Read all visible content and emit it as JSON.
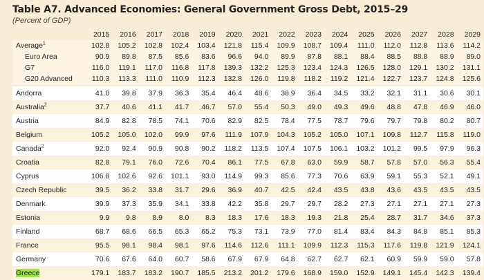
{
  "title": "Table A7. Advanced Economies: General Government Gross Debt, 2015–29",
  "subtitle": "(Percent of GDP)",
  "columns": [
    "2015",
    "2016",
    "2017",
    "2018",
    "2019",
    "2020",
    "2021",
    "2022",
    "2023",
    "2024",
    "2025",
    "2026",
    "2027",
    "2028",
    "2029"
  ],
  "groups": [
    {
      "label": "Average",
      "sup": "1",
      "indent": false,
      "values": [
        "102.8",
        "105.2",
        "102.8",
        "102.4",
        "103.4",
        "121.8",
        "115.4",
        "109.9",
        "108.7",
        "109.4",
        "111.0",
        "112.0",
        "112.8",
        "113.6",
        "114.2"
      ]
    },
    {
      "label": "Euro Area",
      "sup": "",
      "indent": true,
      "values": [
        "90.9",
        "89.8",
        "87.5",
        "85.6",
        "83.6",
        "96.6",
        "94.0",
        "89.9",
        "87.8",
        "88.1",
        "88.4",
        "88.5",
        "88.8",
        "88.9",
        "89.0"
      ]
    },
    {
      "label": "G7",
      "sup": "",
      "indent": true,
      "values": [
        "116.0",
        "119.1",
        "117.0",
        "116.8",
        "117.8",
        "139.3",
        "132.2",
        "125.3",
        "123.4",
        "124.3",
        "126.5",
        "128.0",
        "129.1",
        "130.2",
        "131.1"
      ]
    },
    {
      "label": "G20 Advanced",
      "sup": "",
      "indent": true,
      "values": [
        "110.3",
        "113.3",
        "111.0",
        "110.9",
        "112.3",
        "132.8",
        "126.0",
        "119.8",
        "118.2",
        "119.2",
        "121.4",
        "122.7",
        "123.7",
        "124.8",
        "125.6"
      ]
    }
  ],
  "countries": [
    {
      "label": "Andorra",
      "sup": "",
      "highlight": false,
      "values": [
        "41.0",
        "39.8",
        "37.9",
        "36.3",
        "35.4",
        "46.4",
        "48.6",
        "38.9",
        "36.4",
        "34.5",
        "33.2",
        "32.1",
        "31.1",
        "30.6",
        "30.1"
      ]
    },
    {
      "label": "Australia",
      "sup": "2",
      "highlight": false,
      "values": [
        "37.7",
        "40.6",
        "41.1",
        "41.7",
        "46.7",
        "57.0",
        "55.4",
        "50.3",
        "49.0",
        "49.3",
        "49.6",
        "48.8",
        "47.8",
        "46.9",
        "46.0"
      ]
    },
    {
      "label": "Austria",
      "sup": "",
      "highlight": false,
      "values": [
        "84.9",
        "82.8",
        "78.5",
        "74.1",
        "70.6",
        "82.9",
        "82.5",
        "78.4",
        "77.5",
        "78.7",
        "79.6",
        "79.7",
        "79.8",
        "80.2",
        "80.7"
      ]
    },
    {
      "label": "Belgium",
      "sup": "",
      "highlight": false,
      "values": [
        "105.2",
        "105.0",
        "102.0",
        "99.9",
        "97.6",
        "111.9",
        "107.9",
        "104.3",
        "105.2",
        "105.0",
        "107.1",
        "109.8",
        "112.7",
        "115.8",
        "119.0"
      ]
    },
    {
      "label": "Canada",
      "sup": "2",
      "highlight": false,
      "values": [
        "92.0",
        "92.4",
        "90.9",
        "90.8",
        "90.2",
        "118.2",
        "113.5",
        "107.4",
        "107.5",
        "106.1",
        "103.2",
        "101.2",
        "99.5",
        "97.9",
        "96.3"
      ]
    },
    {
      "label": "Croatia",
      "sup": "",
      "highlight": false,
      "values": [
        "82.8",
        "79.1",
        "76.0",
        "72.6",
        "70.4",
        "86.1",
        "77.5",
        "67.8",
        "63.0",
        "59.9",
        "58.7",
        "57.8",
        "57.0",
        "56.3",
        "55.4"
      ]
    },
    {
      "label": "Cyprus",
      "sup": "",
      "highlight": false,
      "values": [
        "106.8",
        "102.6",
        "92.6",
        "101.1",
        "93.0",
        "114.9",
        "99.3",
        "85.6",
        "77.3",
        "70.6",
        "63.9",
        "59.1",
        "55.3",
        "52.1",
        "49.1"
      ]
    },
    {
      "label": "Czech Republic",
      "sup": "",
      "highlight": false,
      "values": [
        "39.5",
        "36.2",
        "33.8",
        "31.7",
        "29.6",
        "36.9",
        "40.7",
        "42.5",
        "42.4",
        "43.5",
        "43.8",
        "43.6",
        "43.5",
        "43.5",
        "43.5"
      ]
    },
    {
      "label": "Denmark",
      "sup": "",
      "highlight": false,
      "values": [
        "39.9",
        "37.3",
        "35.9",
        "34.1",
        "33.8",
        "42.2",
        "35.8",
        "29.7",
        "29.7",
        "28.2",
        "27.3",
        "27.1",
        "27.1",
        "27.1",
        "27.3"
      ]
    },
    {
      "label": "Estonia",
      "sup": "",
      "highlight": false,
      "values": [
        "9.9",
        "9.8",
        "8.9",
        "8.0",
        "8.3",
        "18.3",
        "17.6",
        "18.3",
        "19.3",
        "21.8",
        "25.4",
        "28.7",
        "31.7",
        "34.6",
        "37.3"
      ]
    },
    {
      "label": "Finland",
      "sup": "",
      "highlight": false,
      "values": [
        "68.7",
        "68.6",
        "66.5",
        "65.3",
        "65.2",
        "75.3",
        "73.1",
        "73.9",
        "77.0",
        "81.4",
        "83.4",
        "84.3",
        "84.8",
        "85.1",
        "85.3"
      ]
    },
    {
      "label": "France",
      "sup": "",
      "highlight": false,
      "values": [
        "95.5",
        "98.1",
        "98.4",
        "98.1",
        "97.6",
        "114.6",
        "112.6",
        "111.1",
        "109.9",
        "112.3",
        "115.3",
        "117.6",
        "119.8",
        "121.9",
        "124.1"
      ]
    },
    {
      "label": "Germany",
      "sup": "",
      "highlight": false,
      "values": [
        "70.6",
        "67.6",
        "64.0",
        "60.7",
        "58.6",
        "67.9",
        "67.9",
        "64.8",
        "62.7",
        "62.7",
        "62.1",
        "60.9",
        "59.9",
        "59.0",
        "57.8"
      ]
    },
    {
      "label": "Greece",
      "sup": "",
      "highlight": true,
      "values": [
        "179.1",
        "183.7",
        "183.2",
        "190.7",
        "185.5",
        "213.2",
        "201.2",
        "179.6",
        "168.9",
        "159.0",
        "152.9",
        "149.1",
        "145.4",
        "142.3",
        "139.4"
      ]
    }
  ]
}
